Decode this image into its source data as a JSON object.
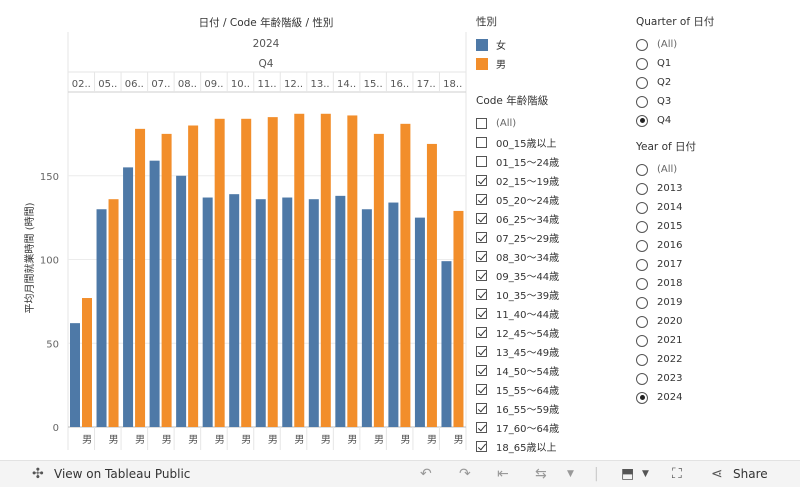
{
  "header": {
    "title": "日付 / Code 年齢階級 / 性別",
    "year": "2024",
    "quarter": "Q4"
  },
  "chart_data": {
    "type": "bar",
    "ylabel": "平均月間就業時間 (時間)",
    "ylim": [
      0,
      200
    ],
    "yticks": [
      0,
      50,
      100,
      150
    ],
    "grid": true,
    "categories": [
      "02..",
      "05..",
      "06..",
      "07..",
      "08..",
      "09..",
      "10..",
      "11..",
      "12..",
      "13..",
      "14..",
      "15..",
      "16..",
      "17..",
      "18.."
    ],
    "bottom_label": "男",
    "series": [
      {
        "name": "女",
        "color": "#4e79a7",
        "values": [
          62,
          130,
          155,
          159,
          150,
          137,
          139,
          136,
          137,
          136,
          138,
          130,
          134,
          125,
          99
        ]
      },
      {
        "name": "男",
        "color": "#f28e2b",
        "values": [
          77,
          136,
          178,
          175,
          180,
          184,
          184,
          185,
          187,
          187,
          186,
          175,
          181,
          169,
          129
        ]
      }
    ]
  },
  "legend_gender": {
    "title": "性別",
    "items": [
      {
        "label": "女",
        "color": "#4e79a7"
      },
      {
        "label": "男",
        "color": "#f28e2b"
      }
    ]
  },
  "filter_age": {
    "title": "Code 年齢階級",
    "items": [
      {
        "label": "(All)",
        "checked": false
      },
      {
        "label": "00_15歳以上",
        "checked": false
      },
      {
        "label": "01_15～24歳",
        "checked": false
      },
      {
        "label": "02_15～19歳",
        "checked": true
      },
      {
        "label": "05_20～24歳",
        "checked": true
      },
      {
        "label": "06_25～34歳",
        "checked": true
      },
      {
        "label": "07_25～29歳",
        "checked": true
      },
      {
        "label": "08_30～34歳",
        "checked": true
      },
      {
        "label": "09_35～44歳",
        "checked": true
      },
      {
        "label": "10_35～39歳",
        "checked": true
      },
      {
        "label": "11_40～44歳",
        "checked": true
      },
      {
        "label": "12_45～54歳",
        "checked": true
      },
      {
        "label": "13_45～49歳",
        "checked": true
      },
      {
        "label": "14_50～54歳",
        "checked": true
      },
      {
        "label": "15_55～64歳",
        "checked": true
      },
      {
        "label": "16_55～59歳",
        "checked": true
      },
      {
        "label": "17_60～64歳",
        "checked": true
      },
      {
        "label": "18_65歳以上",
        "checked": true
      }
    ]
  },
  "filter_quarter": {
    "title": "Quarter of 日付",
    "items": [
      {
        "label": "(All)",
        "selected": false
      },
      {
        "label": "Q1",
        "selected": false
      },
      {
        "label": "Q2",
        "selected": false
      },
      {
        "label": "Q3",
        "selected": false
      },
      {
        "label": "Q4",
        "selected": true
      }
    ]
  },
  "filter_year": {
    "title": "Year of 日付",
    "items": [
      {
        "label": "(All)",
        "selected": false
      },
      {
        "label": "2013",
        "selected": false
      },
      {
        "label": "2014",
        "selected": false
      },
      {
        "label": "2015",
        "selected": false
      },
      {
        "label": "2016",
        "selected": false
      },
      {
        "label": "2017",
        "selected": false
      },
      {
        "label": "2018",
        "selected": false
      },
      {
        "label": "2019",
        "selected": false
      },
      {
        "label": "2020",
        "selected": false
      },
      {
        "label": "2021",
        "selected": false
      },
      {
        "label": "2022",
        "selected": false
      },
      {
        "label": "2023",
        "selected": false
      },
      {
        "label": "2024",
        "selected": true
      }
    ]
  },
  "footer": {
    "view_label": "View on Tableau Public",
    "share_label": "Share"
  }
}
